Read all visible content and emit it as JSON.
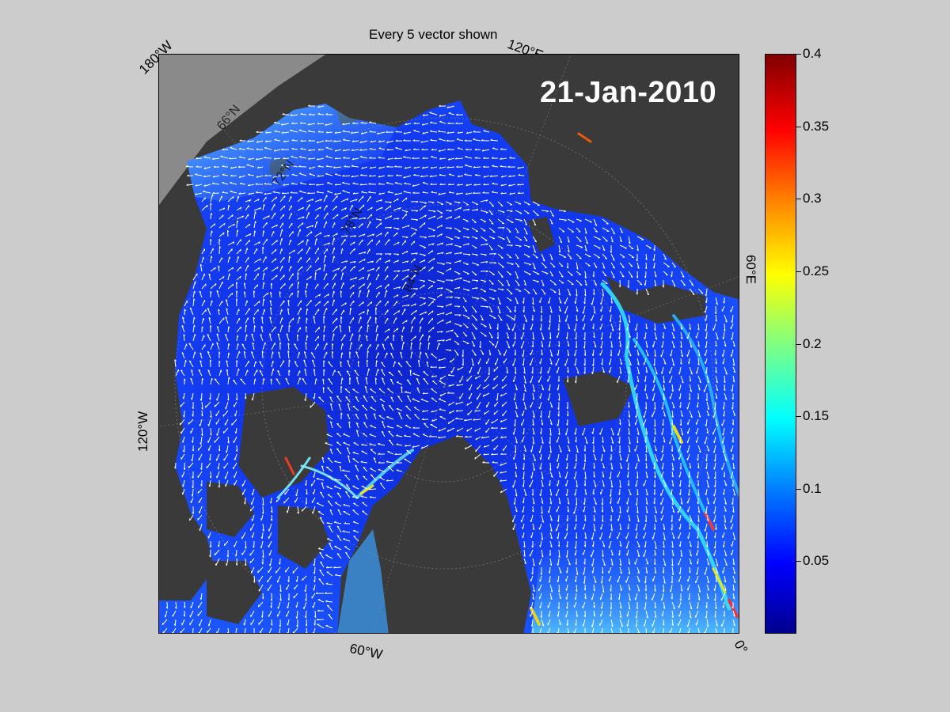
{
  "figure": {
    "title": "Every 5 vector shown",
    "date_label": "21-Jan-2010"
  },
  "map": {
    "longitude_labels": [
      "180°W",
      "120°E",
      "60°E",
      "0°",
      "60°W",
      "120°W"
    ],
    "latitude_labels": [
      "66°N",
      "72°N",
      "78°N",
      "84°N"
    ],
    "colors": {
      "land": "#3a3a3a",
      "outside_land": "#8a8a8a",
      "ice_base": "#1133ee",
      "vectors": "#ffffff"
    }
  },
  "colorbar": {
    "colormap": "jet",
    "range": [
      0,
      0.4
    ],
    "tick_labels": [
      "0.4",
      "0.35",
      "0.3",
      "0.25",
      "0.2",
      "0.15",
      "0.1",
      "0.05"
    ],
    "tick_values": [
      0.4,
      0.35,
      0.3,
      0.25,
      0.2,
      0.15,
      0.1,
      0.05
    ]
  }
}
